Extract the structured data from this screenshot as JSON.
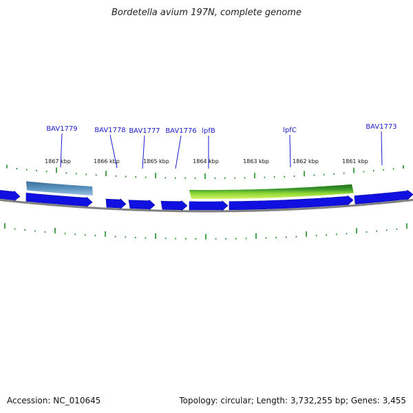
{
  "header": {
    "title": "Bordetella avium 197N, complete genome"
  },
  "footer": {
    "accession": "Accession: NC_010645",
    "summary": "Topology: circular; Length: 3,732,255 bp; Genes: 3,455"
  },
  "colors": {
    "gene": "#1010e0",
    "gene_dark": "#0000a0",
    "label": "#1a1acc",
    "tick": "#1f8a1f",
    "backbone": "#808080",
    "feature_green_dark": "#237a1c",
    "feature_green_light": "#aee83a",
    "feature_blue": "#4682b4"
  },
  "scale": {
    "ticks_kbp": [
      1867,
      1866,
      1865,
      1864,
      1863,
      1862,
      1861
    ],
    "tick_labels": [
      "1867 kbp",
      "1866 kbp",
      "1865 kbp",
      "1864 kbp",
      "1863 kbp",
      "1862 kbp",
      "1861 kbp"
    ]
  },
  "gene_labels": [
    "BAV1779",
    "BAV1778",
    "BAV1777",
    "BAV1776",
    "lpfB",
    "lpfC",
    "BAV1773"
  ],
  "genes": [
    {
      "name": "",
      "direction": "forward"
    },
    {
      "name": "BAV1779",
      "direction": "forward"
    },
    {
      "name": "BAV1778",
      "direction": "forward"
    },
    {
      "name": "BAV1777",
      "direction": "forward"
    },
    {
      "name": "BAV1776",
      "direction": "forward"
    },
    {
      "name": "lpfB",
      "direction": "forward"
    },
    {
      "name": "lpfC",
      "direction": "forward"
    },
    {
      "name": "BAV1773",
      "direction": "forward"
    }
  ],
  "features": [
    {
      "name": "lpfC-region",
      "color_key": "green"
    },
    {
      "name": "BAV1779-region",
      "color_key": "blue"
    }
  ]
}
